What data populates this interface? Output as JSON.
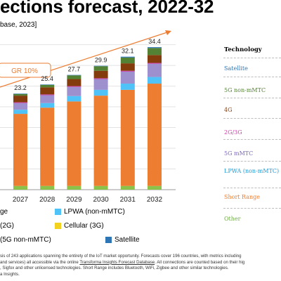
{
  "title": "ections forecast, 2022-32",
  "subtitle": "base, 2023]",
  "technology_panel": {
    "heading": "Technology",
    "items": [
      {
        "label": "Satellite",
        "color": "#2e75b6"
      },
      {
        "label": "5G non-mMTC",
        "color": "#548235"
      },
      {
        "label": "4G",
        "color": "#843c0c"
      },
      {
        "label": "2G/3G",
        "color": "#c83fa6"
      },
      {
        "label": "5G mMTC",
        "color": "#7b68b8"
      },
      {
        "label": "LPWA (non-mMTC)",
        "color": "#1f9ad6"
      },
      {
        "label": "Short Range",
        "color": "#ed7d31"
      },
      {
        "label": "Other",
        "color": "#70ad47"
      }
    ]
  },
  "legend": {
    "items": [
      {
        "label": "ge",
        "color": "#ed7d31"
      },
      {
        "label": "LPWA (non-mMTC)",
        "color": "#4fc3f7"
      },
      {
        "label": "(2G)",
        "color": "#c83fa6"
      },
      {
        "label": "Cellular (3G)",
        "color": "#f2d21f"
      },
      {
        "label": "(5G non-mMTC)",
        "color": "#548235"
      },
      {
        "label": "Satellite",
        "color": "#2e75b6"
      }
    ]
  },
  "cagr_label": "GR 10%",
  "footnote": {
    "line1": "sis of 243 applications spanning the entirety of the IoT market opportunity. Forecasts cover 196 countries, with metrics including",
    "line2_before": "and services) all accessible via the online ",
    "line2_link": "Transforma Insights Forecast Database",
    "line2_after": ". All connections are counted based on their hig",
    "line3": ", Sigfox and other unlicensed technologies. Short Range includes Bluetooth, WiFi, Zigbee and other similar technologies.",
    "line4": "a Insights."
  },
  "chart_data": {
    "type": "bar",
    "stacked": true,
    "title": "ections forecast, 2022-32",
    "subtitle": "base, 2023]",
    "categories": [
      "2027",
      "2028",
      "2029",
      "2030",
      "2031",
      "2032"
    ],
    "totals": [
      23.2,
      25.4,
      27.7,
      29.9,
      32.1,
      34.4
    ],
    "total_labels": [
      "23.2",
      "25.4",
      "27.7",
      "29.9",
      "32.1",
      "34.4"
    ],
    "ylim": [
      0,
      39
    ],
    "grid": true,
    "annotation": "GR 10%",
    "series": [
      {
        "name": "Other",
        "color": "#8bc34a",
        "values": [
          0.9,
          0.9,
          0.9,
          0.9,
          0.9,
          0.9
        ]
      },
      {
        "name": "Short Range",
        "color": "#ed7d31",
        "values": [
          17.4,
          18.9,
          20.4,
          21.8,
          23.2,
          24.7
        ]
      },
      {
        "name": "LPWA (non-mMTC)",
        "color": "#4fc3f7",
        "values": [
          1.0,
          1.1,
          1.3,
          1.4,
          1.5,
          1.6
        ]
      },
      {
        "name": "5G mMTC",
        "color": "#9e8fce",
        "values": [
          1.6,
          1.9,
          2.2,
          2.6,
          2.9,
          3.2
        ]
      },
      {
        "name": "2G/3G",
        "color": "#c83fa6",
        "values": [
          0.2,
          0.2,
          0.2,
          0.2,
          0.2,
          0.2
        ]
      },
      {
        "name": "4G",
        "color": "#843c0c",
        "values": [
          1.6,
          1.7,
          1.7,
          1.8,
          1.8,
          1.9
        ]
      },
      {
        "name": "5G non-mMTC",
        "color": "#548235",
        "values": [
          0.4,
          0.6,
          0.9,
          1.1,
          1.4,
          1.7
        ]
      },
      {
        "name": "Satellite",
        "color": "#2e75b6",
        "values": [
          0.1,
          0.1,
          0.1,
          0.1,
          0.2,
          0.2
        ]
      }
    ]
  }
}
